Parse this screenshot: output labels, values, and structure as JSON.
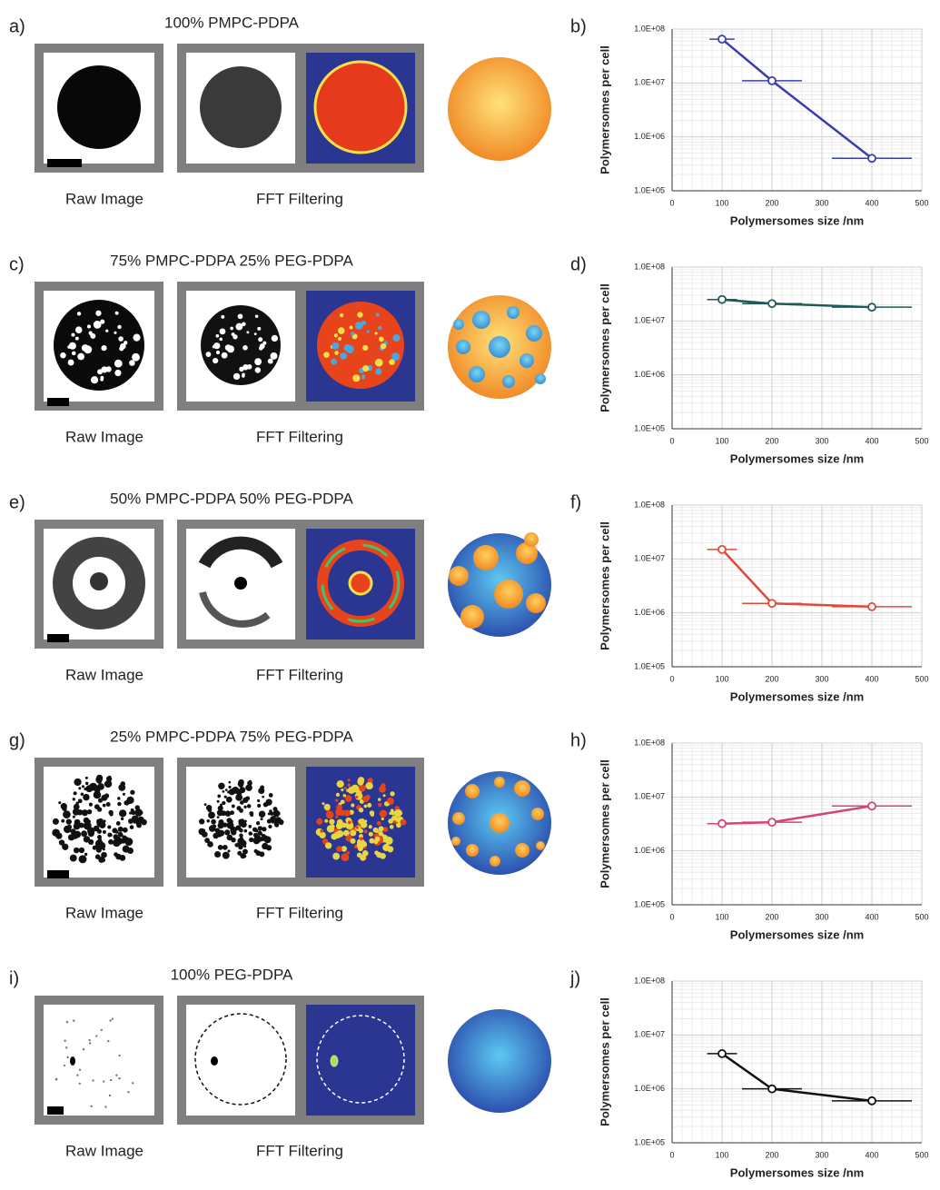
{
  "rows": [
    {
      "label": "a)",
      "title": "100% PMPC-PDPA",
      "raw_caption": "Raw Image",
      "fft_caption": "FFT Filtering"
    },
    {
      "label": "c)",
      "title": "75% PMPC-PDPA  25% PEG-PDPA",
      "raw_caption": "Raw Image",
      "fft_caption": "FFT Filtering"
    },
    {
      "label": "e)",
      "title": "50% PMPC-PDPA  50% PEG-PDPA",
      "raw_caption": "Raw Image",
      "fft_caption": "FFT Filtering"
    },
    {
      "label": "g)",
      "title": "25% PMPC-PDPA  75% PEG-PDPA",
      "raw_caption": "Raw Image",
      "fft_caption": "FFT Filtering"
    },
    {
      "label": "i)",
      "title": "100% PEG-PDPA",
      "raw_caption": "Raw Image",
      "fft_caption": "FFT Filtering"
    }
  ],
  "chart_data": [
    {
      "type": "line",
      "panel_label": "b)",
      "xlabel": "Polymersomes size /nm",
      "ylabel": "Polymersomes per cell",
      "log_y": true,
      "grid": true,
      "x": [
        100,
        200,
        400
      ],
      "series": [
        {
          "color": "#3a3fa8",
          "values": [
            65000000,
            11000000,
            400000
          ],
          "xerr": [
            25,
            60,
            80
          ]
        }
      ],
      "xlim": [
        0,
        500
      ],
      "xticks": [
        0,
        100,
        200,
        300,
        400,
        500
      ],
      "ylim": [
        100000,
        100000000
      ],
      "yticks": [
        {
          "value": 100000,
          "label": "1.0E+05"
        },
        {
          "value": 1000000,
          "label": "1.0E+06"
        },
        {
          "value": 10000000,
          "label": "1.0E+07"
        },
        {
          "value": 100000000,
          "label": "1.0E+08"
        }
      ]
    },
    {
      "type": "line",
      "panel_label": "d)",
      "xlabel": "Polymersomes size /nm",
      "ylabel": "Polymersomes per cell",
      "log_y": true,
      "grid": true,
      "x": [
        100,
        200,
        400
      ],
      "series": [
        {
          "color": "#1f5a55",
          "values": [
            25000000,
            21000000,
            18000000
          ],
          "xerr": [
            30,
            60,
            80
          ]
        }
      ],
      "xlim": [
        0,
        500
      ],
      "xticks": [
        0,
        100,
        200,
        300,
        400,
        500
      ],
      "ylim": [
        100000,
        100000000
      ],
      "yticks": [
        {
          "value": 100000,
          "label": "1.0E+05"
        },
        {
          "value": 1000000,
          "label": "1.0E+06"
        },
        {
          "value": 10000000,
          "label": "1.0E+07"
        },
        {
          "value": 100000000,
          "label": "1.0E+08"
        }
      ]
    },
    {
      "type": "line",
      "panel_label": "f)",
      "xlabel": "Polymersomes size /nm",
      "ylabel": "Polymersomes per cell",
      "log_y": true,
      "grid": true,
      "x": [
        100,
        200,
        400
      ],
      "series": [
        {
          "color": "#e04a3a",
          "values": [
            15000000,
            1500000,
            1300000
          ],
          "xerr": [
            30,
            60,
            80
          ]
        }
      ],
      "xlim": [
        0,
        500
      ],
      "xticks": [
        0,
        100,
        200,
        300,
        400,
        500
      ],
      "ylim": [
        100000,
        100000000
      ],
      "yticks": [
        {
          "value": 100000,
          "label": "1.0E+05"
        },
        {
          "value": 1000000,
          "label": "1.0E+06"
        },
        {
          "value": 10000000,
          "label": "1.0E+07"
        },
        {
          "value": 100000000,
          "label": "1.0E+08"
        }
      ]
    },
    {
      "type": "line",
      "panel_label": "h)",
      "xlabel": "Polymersomes size /nm",
      "ylabel": "Polymersomes per cell",
      "log_y": true,
      "grid": true,
      "x": [
        100,
        200,
        400
      ],
      "series": [
        {
          "color": "#d4457a",
          "values": [
            3200000,
            3400000,
            6800000
          ],
          "xerr": [
            30,
            60,
            80
          ]
        }
      ],
      "xlim": [
        0,
        500
      ],
      "xticks": [
        0,
        100,
        200,
        300,
        400,
        500
      ],
      "ylim": [
        100000,
        100000000
      ],
      "yticks": [
        {
          "value": 100000,
          "label": "1.0E+05"
        },
        {
          "value": 1000000,
          "label": "1.0E+06"
        },
        {
          "value": 10000000,
          "label": "1.0E+07"
        },
        {
          "value": 100000000,
          "label": "1.0E+08"
        }
      ]
    },
    {
      "type": "line",
      "panel_label": "j)",
      "xlabel": "Polymersomes size /nm",
      "ylabel": "Polymersomes per cell",
      "log_y": true,
      "grid": true,
      "x": [
        100,
        200,
        400
      ],
      "series": [
        {
          "color": "#111111",
          "values": [
            4500000,
            1000000,
            600000
          ],
          "xerr": [
            30,
            60,
            80
          ]
        }
      ],
      "xlim": [
        0,
        500
      ],
      "xticks": [
        0,
        100,
        200,
        300,
        400,
        500
      ],
      "ylim": [
        100000,
        100000000
      ],
      "yticks": [
        {
          "value": 100000,
          "label": "1.0E+05"
        },
        {
          "value": 1000000,
          "label": "1.0E+06"
        },
        {
          "value": 10000000,
          "label": "1.0E+07"
        },
        {
          "value": 100000000,
          "label": "1.0E+08"
        }
      ]
    }
  ]
}
